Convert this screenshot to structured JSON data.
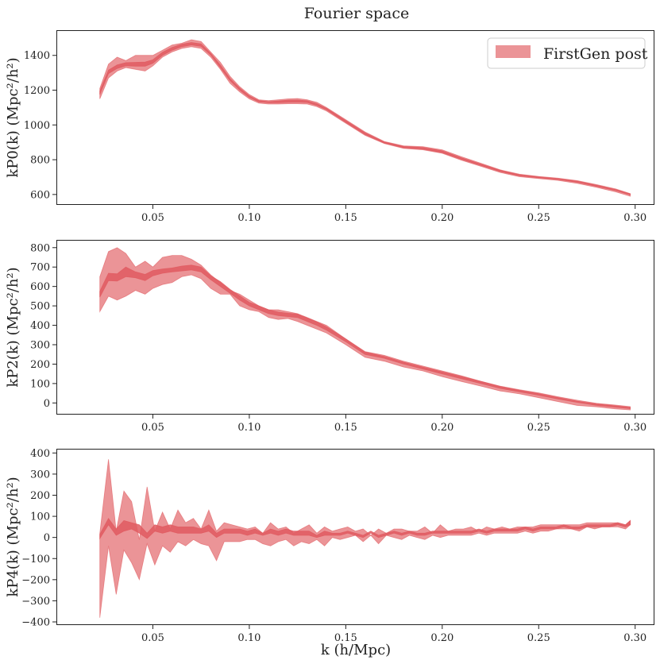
{
  "figure": {
    "title": "Fourier space",
    "xlabel": "k (h/Mpc)",
    "legend": {
      "label": "FirstGen post",
      "color": "#e05a60",
      "fill_opacity": 0.65
    }
  },
  "chart_data": [
    {
      "type": "area",
      "id": "p0",
      "ylabel": "kP0(k) (Mpc²/h²)",
      "xlim": [
        0.0,
        0.31
      ],
      "ylim": [
        540,
        1545
      ],
      "xticks": [
        0.05,
        0.1,
        0.15,
        0.2,
        0.25,
        0.3
      ],
      "xtick_labels": [
        "0.05",
        "0.10",
        "0.15",
        "0.20",
        "0.25",
        "0.30"
      ],
      "yticks": [
        600,
        800,
        1000,
        1200,
        1400
      ],
      "ytick_labels": [
        "600",
        "800",
        "1000",
        "1200",
        "1400"
      ],
      "series": [
        {
          "name": "FirstGen post",
          "x": [
            0.0225,
            0.027,
            0.0315,
            0.036,
            0.041,
            0.046,
            0.05,
            0.055,
            0.06,
            0.065,
            0.07,
            0.075,
            0.08,
            0.085,
            0.09,
            0.095,
            0.1,
            0.105,
            0.11,
            0.115,
            0.12,
            0.125,
            0.13,
            0.135,
            0.14,
            0.15,
            0.16,
            0.17,
            0.18,
            0.19,
            0.2,
            0.21,
            0.22,
            0.23,
            0.24,
            0.25,
            0.26,
            0.27,
            0.28,
            0.29,
            0.2975
          ],
          "outer_lower": [
            1150,
            1270,
            1310,
            1330,
            1320,
            1310,
            1340,
            1390,
            1420,
            1440,
            1450,
            1440,
            1390,
            1320,
            1240,
            1190,
            1150,
            1125,
            1120,
            1120,
            1122,
            1122,
            1120,
            1105,
            1080,
            1010,
            940,
            893,
            865,
            857,
            837,
            797,
            762,
            727,
            702,
            691,
            681,
            664,
            641,
            615,
            590
          ],
          "outer_upper": [
            1210,
            1350,
            1390,
            1370,
            1400,
            1400,
            1400,
            1430,
            1460,
            1470,
            1490,
            1480,
            1420,
            1360,
            1280,
            1220,
            1175,
            1145,
            1140,
            1145,
            1150,
            1152,
            1145,
            1130,
            1100,
            1030,
            960,
            905,
            880,
            875,
            857,
            817,
            780,
            742,
            717,
            704,
            694,
            680,
            657,
            632,
            605
          ],
          "inner_lower": [
            1175,
            1295,
            1325,
            1340,
            1338,
            1338,
            1355,
            1400,
            1430,
            1450,
            1460,
            1452,
            1402,
            1330,
            1255,
            1200,
            1158,
            1132,
            1128,
            1128,
            1130,
            1131,
            1129,
            1113,
            1087,
            1015,
            945,
            896,
            869,
            861,
            841,
            802,
            767,
            732,
            707,
            696,
            686,
            670,
            647,
            622,
            598
          ],
          "inner_upper": [
            1195,
            1315,
            1345,
            1358,
            1360,
            1362,
            1375,
            1418,
            1446,
            1464,
            1474,
            1466,
            1412,
            1344,
            1267,
            1212,
            1167,
            1140,
            1134,
            1138,
            1142,
            1143,
            1139,
            1122,
            1095,
            1025,
            955,
            902,
            876,
            870,
            851,
            811,
            775,
            739,
            713,
            701,
            690,
            676,
            653,
            628,
            603
          ]
        }
      ]
    },
    {
      "type": "area",
      "id": "p2",
      "ylabel": "kP2(k) (Mpc²/h²)",
      "xlim": [
        0.0,
        0.31
      ],
      "ylim": [
        -60,
        840
      ],
      "xticks": [
        0.05,
        0.1,
        0.15,
        0.2,
        0.25,
        0.3
      ],
      "xtick_labels": [
        "0.05",
        "0.10",
        "0.15",
        "0.20",
        "0.25",
        "0.30"
      ],
      "yticks": [
        0,
        100,
        200,
        300,
        400,
        500,
        600,
        700,
        800
      ],
      "ytick_labels": [
        "0",
        "100",
        "200",
        "300",
        "400",
        "500",
        "600",
        "700",
        "800"
      ],
      "series": [
        {
          "name": "FirstGen post",
          "x": [
            0.0225,
            0.027,
            0.0315,
            0.036,
            0.041,
            0.046,
            0.05,
            0.055,
            0.06,
            0.065,
            0.07,
            0.075,
            0.08,
            0.085,
            0.09,
            0.095,
            0.1,
            0.105,
            0.11,
            0.115,
            0.12,
            0.125,
            0.13,
            0.135,
            0.14,
            0.15,
            0.16,
            0.17,
            0.18,
            0.19,
            0.2,
            0.21,
            0.22,
            0.23,
            0.24,
            0.25,
            0.26,
            0.27,
            0.28,
            0.29,
            0.2975
          ],
          "outer_lower": [
            470,
            550,
            530,
            550,
            580,
            560,
            590,
            610,
            620,
            650,
            660,
            640,
            590,
            560,
            560,
            500,
            480,
            470,
            440,
            430,
            435,
            420,
            400,
            380,
            360,
            300,
            235,
            215,
            185,
            165,
            135,
            110,
            87,
            62,
            47,
            27,
            7,
            -13,
            -20,
            -31,
            -36
          ],
          "outer_upper": [
            650,
            780,
            800,
            770,
            700,
            730,
            700,
            750,
            760,
            760,
            740,
            710,
            660,
            620,
            580,
            560,
            530,
            500,
            480,
            480,
            470,
            460,
            440,
            420,
            400,
            330,
            265,
            245,
            215,
            190,
            165,
            140,
            112,
            87,
            68,
            52,
            32,
            14,
            -2,
            -11,
            -19
          ],
          "inner_lower": [
            545,
            630,
            628,
            650,
            645,
            630,
            655,
            668,
            675,
            680,
            685,
            675,
            635,
            600,
            565,
            530,
            500,
            480,
            460,
            450,
            445,
            440,
            420,
            400,
            375,
            315,
            250,
            230,
            200,
            175,
            150,
            125,
            100,
            75,
            57,
            40,
            20,
            3,
            -12,
            -22,
            -29
          ],
          "inner_upper": [
            575,
            668,
            665,
            700,
            675,
            662,
            682,
            690,
            695,
            705,
            710,
            700,
            655,
            625,
            585,
            552,
            518,
            500,
            480,
            468,
            462,
            458,
            438,
            418,
            392,
            330,
            262,
            240,
            210,
            185,
            160,
            136,
            111,
            85,
            65,
            48,
            28,
            9,
            -5,
            -15,
            -23
          ]
        }
      ]
    },
    {
      "type": "area",
      "id": "p4",
      "ylabel": "kP4(k) (Mpc²/h²)",
      "xlim": [
        0.0,
        0.31
      ],
      "ylim": [
        -415,
        420
      ],
      "xticks": [
        0.05,
        0.1,
        0.15,
        0.2,
        0.25,
        0.3
      ],
      "xtick_labels": [
        "0.05",
        "0.10",
        "0.15",
        "0.20",
        "0.25",
        "0.30"
      ],
      "yticks": [
        -400,
        -300,
        -200,
        -100,
        0,
        100,
        200,
        300,
        400
      ],
      "ytick_labels": [
        "−400",
        "−300",
        "−200",
        "−100",
        "0",
        "100",
        "200",
        "300",
        "400"
      ],
      "series": [
        {
          "name": "FirstGen post",
          "x": [
            0.0225,
            0.027,
            0.031,
            0.035,
            0.039,
            0.043,
            0.047,
            0.051,
            0.055,
            0.059,
            0.063,
            0.067,
            0.071,
            0.075,
            0.079,
            0.083,
            0.087,
            0.091,
            0.095,
            0.099,
            0.103,
            0.107,
            0.111,
            0.115,
            0.119,
            0.123,
            0.127,
            0.131,
            0.135,
            0.139,
            0.143,
            0.147,
            0.151,
            0.155,
            0.159,
            0.163,
            0.167,
            0.171,
            0.175,
            0.179,
            0.183,
            0.187,
            0.191,
            0.195,
            0.199,
            0.203,
            0.207,
            0.211,
            0.215,
            0.219,
            0.223,
            0.227,
            0.231,
            0.235,
            0.239,
            0.243,
            0.247,
            0.251,
            0.255,
            0.259,
            0.263,
            0.267,
            0.271,
            0.275,
            0.279,
            0.283,
            0.287,
            0.291,
            0.295,
            0.2975
          ],
          "outer_lower": [
            -380,
            -40,
            -270,
            -60,
            -120,
            -200,
            -30,
            -130,
            -40,
            -70,
            -20,
            -40,
            -10,
            -30,
            -40,
            -110,
            -20,
            -20,
            -20,
            -10,
            -10,
            -30,
            -40,
            -20,
            -10,
            -40,
            -20,
            -30,
            -10,
            -40,
            0,
            -10,
            0,
            10,
            -20,
            10,
            -30,
            10,
            0,
            -10,
            10,
            0,
            -10,
            10,
            0,
            10,
            10,
            10,
            10,
            20,
            10,
            20,
            20,
            20,
            20,
            30,
            20,
            30,
            30,
            40,
            40,
            40,
            30,
            50,
            40,
            50,
            50,
            50,
            40,
            60
          ],
          "outer_upper": [
            20,
            370,
            30,
            220,
            170,
            -10,
            240,
            30,
            120,
            40,
            130,
            70,
            90,
            40,
            130,
            30,
            70,
            60,
            50,
            40,
            50,
            20,
            70,
            40,
            50,
            20,
            40,
            60,
            20,
            50,
            30,
            40,
            50,
            30,
            40,
            10,
            40,
            20,
            40,
            40,
            30,
            30,
            50,
            20,
            60,
            30,
            40,
            40,
            50,
            30,
            50,
            40,
            50,
            40,
            50,
            50,
            50,
            60,
            60,
            60,
            60,
            60,
            60,
            70,
            70,
            70,
            70,
            70,
            60,
            80
          ],
          "inner_lower": [
            -5,
            60,
            10,
            30,
            40,
            20,
            -5,
            30,
            20,
            30,
            20,
            20,
            20,
            20,
            30,
            0,
            20,
            20,
            20,
            10,
            20,
            10,
            20,
            10,
            20,
            10,
            10,
            10,
            0,
            10,
            10,
            10,
            20,
            10,
            0,
            20,
            0,
            10,
            20,
            10,
            20,
            10,
            10,
            20,
            20,
            20,
            20,
            20,
            20,
            30,
            20,
            30,
            30,
            30,
            30,
            40,
            30,
            40,
            40,
            40,
            50,
            40,
            40,
            50,
            50,
            50,
            50,
            60,
            50,
            60
          ],
          "inner_upper": [
            15,
            90,
            40,
            80,
            70,
            60,
            20,
            60,
            50,
            60,
            50,
            50,
            50,
            40,
            60,
            20,
            40,
            40,
            40,
            30,
            40,
            20,
            40,
            30,
            40,
            30,
            30,
            30,
            10,
            30,
            20,
            20,
            30,
            20,
            10,
            30,
            10,
            20,
            30,
            20,
            30,
            20,
            20,
            30,
            30,
            30,
            30,
            30,
            30,
            40,
            30,
            40,
            40,
            40,
            40,
            50,
            40,
            50,
            50,
            50,
            60,
            50,
            50,
            60,
            60,
            60,
            60,
            70,
            60,
            80
          ]
        }
      ]
    }
  ]
}
